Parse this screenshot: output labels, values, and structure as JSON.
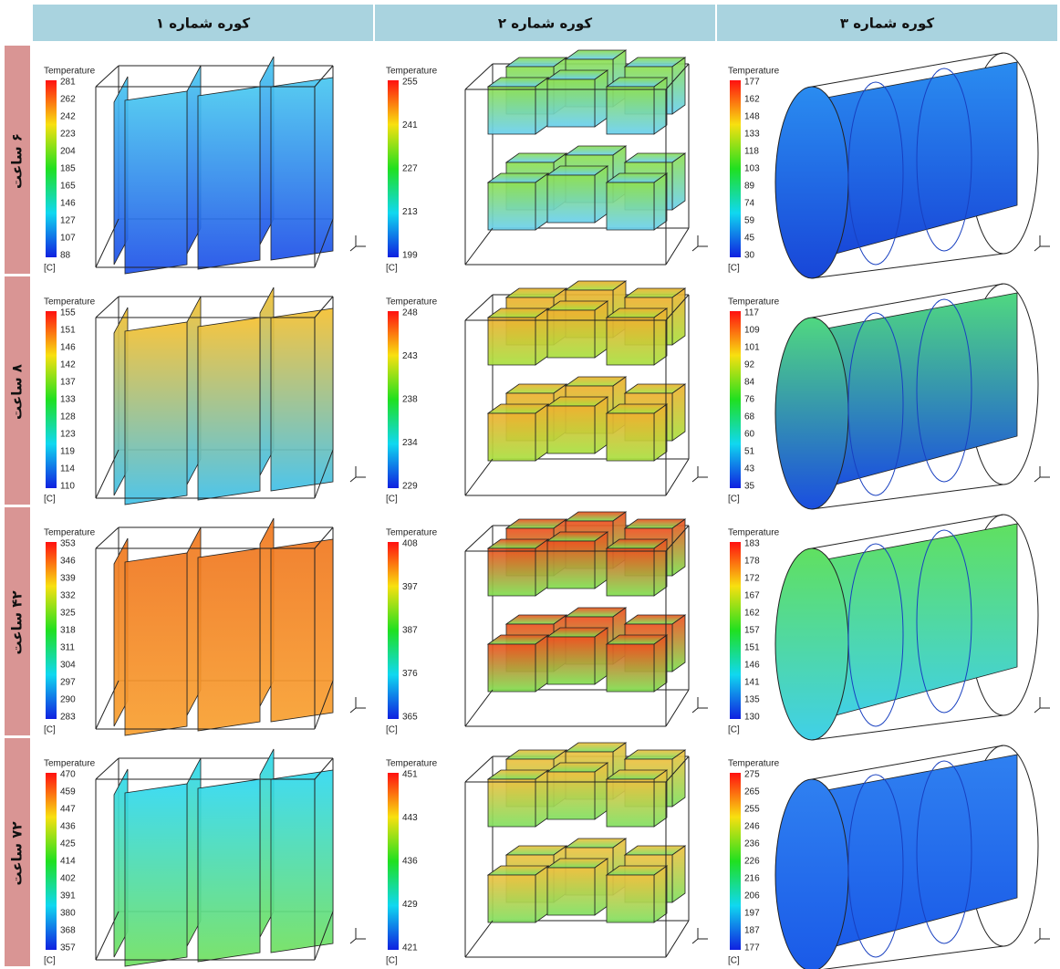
{
  "columns": [
    "کوره شماره ۱",
    "کوره شماره ۲",
    "کوره شماره ۳"
  ],
  "rows": [
    {
      "label": "۶ ساعت",
      "panels": [
        {
          "legend_title": "Temperature",
          "ticks": [
            281,
            262,
            242,
            223,
            204,
            185,
            165,
            146,
            127,
            107,
            88
          ],
          "unit": "[C]"
        },
        {
          "legend_title": "Temperature",
          "ticks": [
            255,
            241,
            227,
            213,
            199
          ],
          "unit": "[C]"
        },
        {
          "legend_title": "Temperature",
          "ticks": [
            177,
            162,
            148,
            133,
            118,
            103,
            89,
            74,
            59,
            45,
            30
          ],
          "unit": "[C]"
        }
      ]
    },
    {
      "label": "۸ ساعت",
      "panels": [
        {
          "legend_title": "Temperature",
          "ticks": [
            155,
            151,
            146,
            142,
            137,
            133,
            128,
            123,
            119,
            114,
            110
          ],
          "unit": "[C]"
        },
        {
          "legend_title": "Temperature",
          "ticks": [
            248,
            243,
            238,
            234,
            229
          ],
          "unit": "[C]"
        },
        {
          "legend_title": "Temperature",
          "ticks": [
            117,
            109,
            101,
            92,
            84,
            76,
            68,
            60,
            51,
            43,
            35
          ],
          "unit": "[C]"
        }
      ]
    },
    {
      "label": "۴۲ ساعت",
      "panels": [
        {
          "legend_title": "Temperature",
          "ticks": [
            353,
            346,
            339,
            332,
            325,
            318,
            311,
            304,
            297,
            290,
            283
          ],
          "unit": "[C]"
        },
        {
          "legend_title": "Temperature",
          "ticks": [
            408,
            397,
            387,
            376,
            365
          ],
          "unit": "[C]"
        },
        {
          "legend_title": "Temperature",
          "ticks": [
            183,
            178,
            172,
            167,
            162,
            157,
            151,
            146,
            141,
            135,
            130
          ],
          "unit": "[C]"
        }
      ]
    },
    {
      "label": "۷۲ ساعت",
      "panels": [
        {
          "legend_title": "Temperature",
          "ticks": [
            470,
            459,
            447,
            436,
            425,
            414,
            402,
            391,
            380,
            368,
            357
          ],
          "unit": "[C]"
        },
        {
          "legend_title": "Temperature",
          "ticks": [
            451,
            443,
            436,
            429,
            421
          ],
          "unit": "[C]"
        },
        {
          "legend_title": "Temperature",
          "ticks": [
            275,
            265,
            255,
            246,
            236,
            226,
            216,
            206,
            197,
            187,
            177
          ],
          "unit": "[C]"
        }
      ]
    }
  ]
}
